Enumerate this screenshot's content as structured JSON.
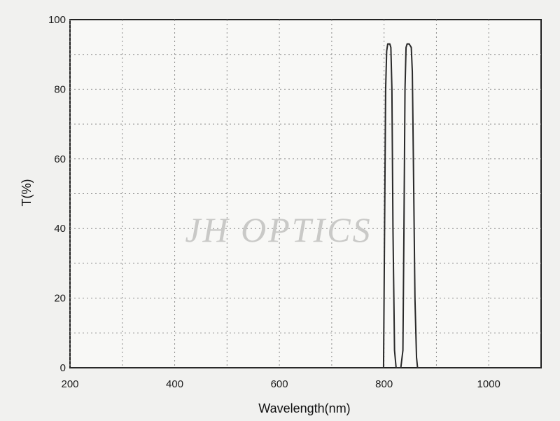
{
  "chart_data": {
    "type": "line",
    "xlabel": "Wavelength(nm)",
    "ylabel": "T(%)",
    "xlim": [
      200,
      1100
    ],
    "ylim": [
      0,
      100
    ],
    "xticks": [
      200,
      400,
      600,
      800,
      1000
    ],
    "yticks": [
      0,
      20,
      40,
      60,
      80,
      100
    ],
    "x_gridlines": [
      200,
      300,
      400,
      500,
      600,
      700,
      800,
      900,
      1000
    ],
    "y_gridlines": [
      10,
      20,
      30,
      40,
      50,
      60,
      70,
      80,
      90
    ],
    "grid": true,
    "watermark": "JH OPTICS",
    "series": [
      {
        "x": [
          200,
          799,
          801,
          803,
          805,
          807,
          811,
          813,
          815,
          817,
          820,
          823,
          828,
          832,
          836,
          838,
          840,
          842,
          844,
          848,
          852,
          854,
          856,
          859,
          862,
          864,
          866,
          1100
        ],
        "y": [
          0,
          0,
          40,
          80,
          91,
          93,
          93,
          92,
          80,
          40,
          5,
          0,
          0,
          0,
          5,
          40,
          80,
          92,
          93,
          93,
          92,
          85,
          60,
          20,
          3,
          0,
          0,
          0
        ]
      }
    ]
  }
}
